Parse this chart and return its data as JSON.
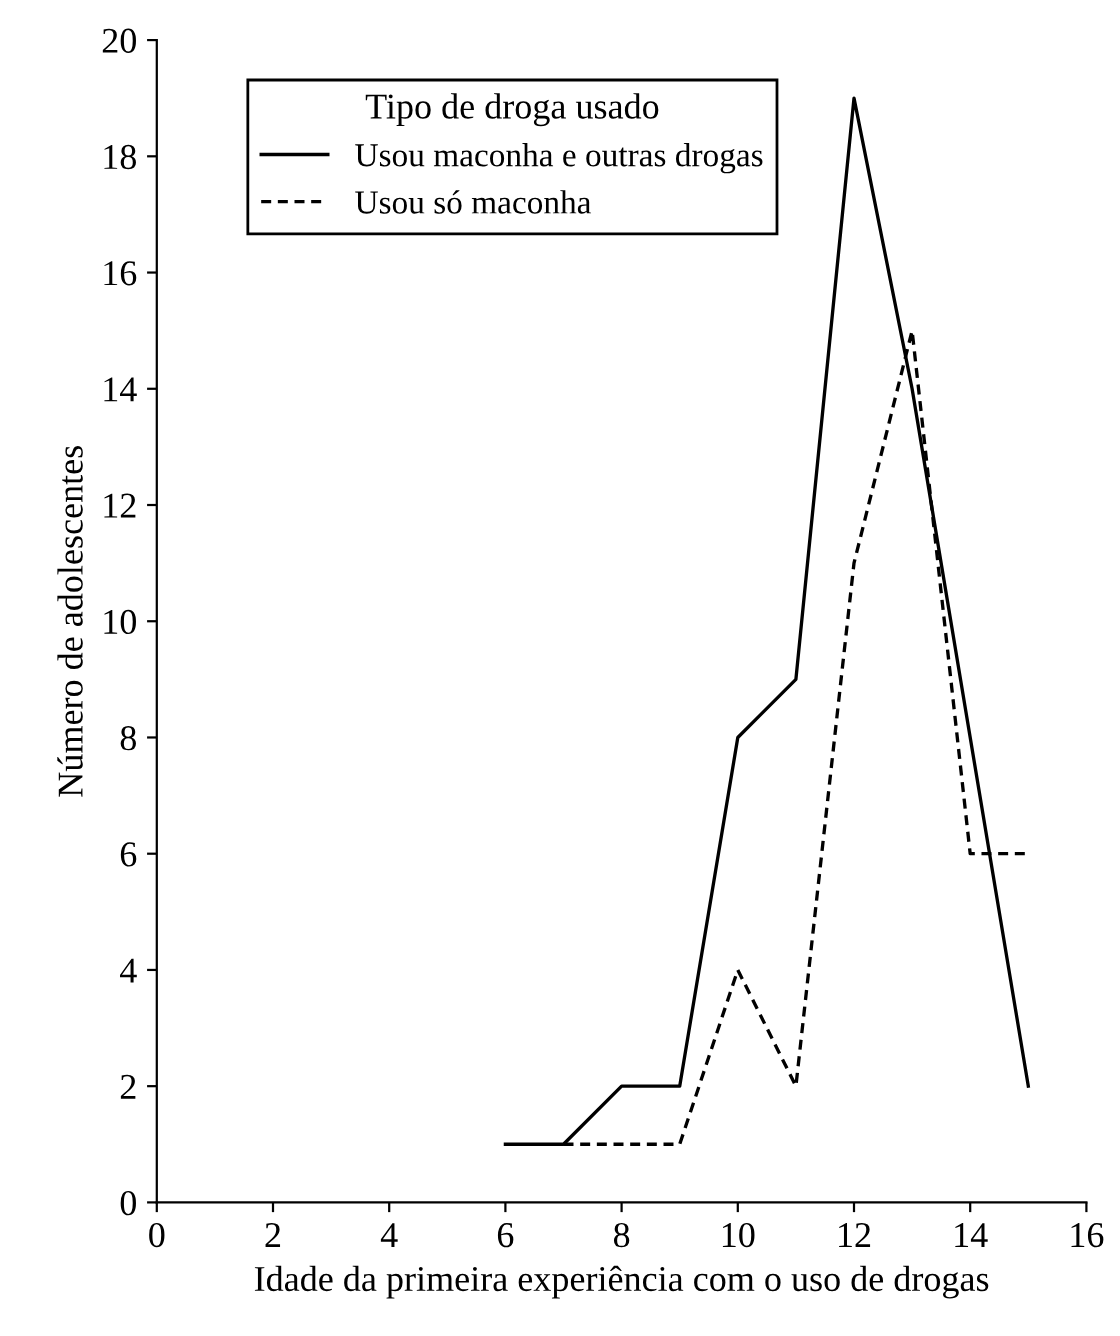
{
  "chart_data": {
    "type": "line",
    "xlabel": "Idade da primeira experiência com o uso de drogas",
    "ylabel": "Número de adolescentes",
    "legend_title": "Tipo de droga usado",
    "legend": "top left",
    "xlim": [
      0,
      16
    ],
    "ylim": [
      0,
      20
    ],
    "xticks": [
      0,
      2,
      4,
      6,
      8,
      10,
      12,
      14,
      16
    ],
    "yticks": [
      0,
      2,
      4,
      6,
      8,
      10,
      12,
      14,
      16,
      18,
      20
    ],
    "grid": false,
    "marker": "none",
    "series": [
      {
        "name": "Usou maconha e outras drogas",
        "color": "#000000",
        "line_style": "solid",
        "x": [
          6,
          7,
          8,
          9,
          10,
          11,
          12,
          13,
          14,
          15
        ],
        "values": [
          1,
          1,
          2,
          2,
          8,
          9,
          19,
          14,
          8,
          2
        ]
      },
      {
        "name": "Usou só maconha",
        "color": "#000000",
        "line_style": "dashed",
        "x": [
          7,
          8,
          9,
          10,
          11,
          12,
          13,
          14,
          15
        ],
        "values": [
          1,
          1,
          1,
          4,
          2,
          11,
          15,
          6,
          6
        ]
      }
    ]
  }
}
